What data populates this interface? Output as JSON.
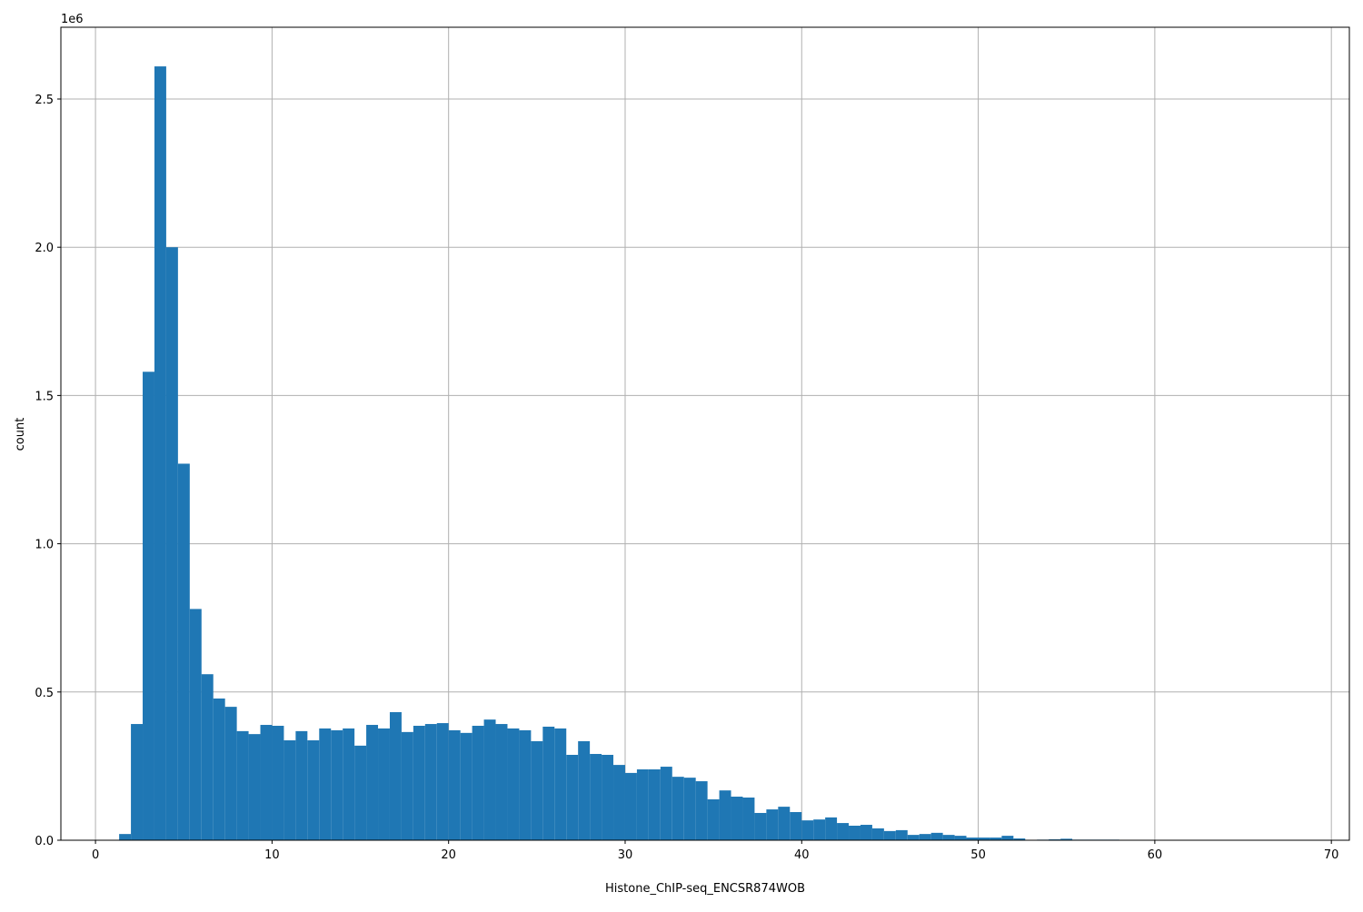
{
  "chart_data": {
    "type": "bar",
    "title": "",
    "xlabel": "Histone_ChIP-seq_ENCSR874WOB",
    "ylabel": "count",
    "y_offset_label": "1e6",
    "xlim": [
      -1.96,
      71.02
    ],
    "ylim": [
      0,
      2742000
    ],
    "grid": true,
    "bar_color": "#1f77b4",
    "bin_start": 1.34,
    "bin_width": 0.6665,
    "x_ticks": [
      0,
      10,
      20,
      30,
      40,
      50,
      60,
      70
    ],
    "x_tick_labels": [
      "0",
      "10",
      "20",
      "30",
      "40",
      "50",
      "60",
      "70"
    ],
    "y_ticks": [
      0,
      500000,
      1000000,
      1500000,
      2000000,
      2500000
    ],
    "y_tick_labels": [
      "0.0",
      "0.5",
      "1.0",
      "1.5",
      "2.0",
      "2.5"
    ],
    "values": [
      21000,
      392000,
      1580000,
      2610000,
      2000000,
      1270000,
      780000,
      560000,
      478000,
      450000,
      368000,
      358000,
      389000,
      386000,
      337000,
      368000,
      337000,
      377000,
      371000,
      377000,
      319000,
      389000,
      377000,
      432000,
      365000,
      386000,
      392000,
      395000,
      371000,
      362000,
      386000,
      407000,
      392000,
      377000,
      371000,
      334000,
      383000,
      377000,
      288000,
      334000,
      291000,
      288000,
      254000,
      227000,
      239000,
      239000,
      248000,
      214000,
      211000,
      199000,
      138000,
      168000,
      147000,
      144000,
      92000,
      104000,
      113000,
      95000,
      67000,
      70000,
      77000,
      58000,
      49000,
      52000,
      40000,
      31000,
      34000,
      18000,
      21000,
      25000,
      18000,
      15000,
      9000,
      9000,
      9000,
      15000,
      6000,
      1000,
      2000,
      3000,
      5000,
      2000,
      2000,
      2000,
      2000,
      1000,
      500,
      300,
      200,
      100,
      100,
      100,
      50,
      50,
      50,
      30,
      20,
      10,
      10,
      10
    ]
  }
}
